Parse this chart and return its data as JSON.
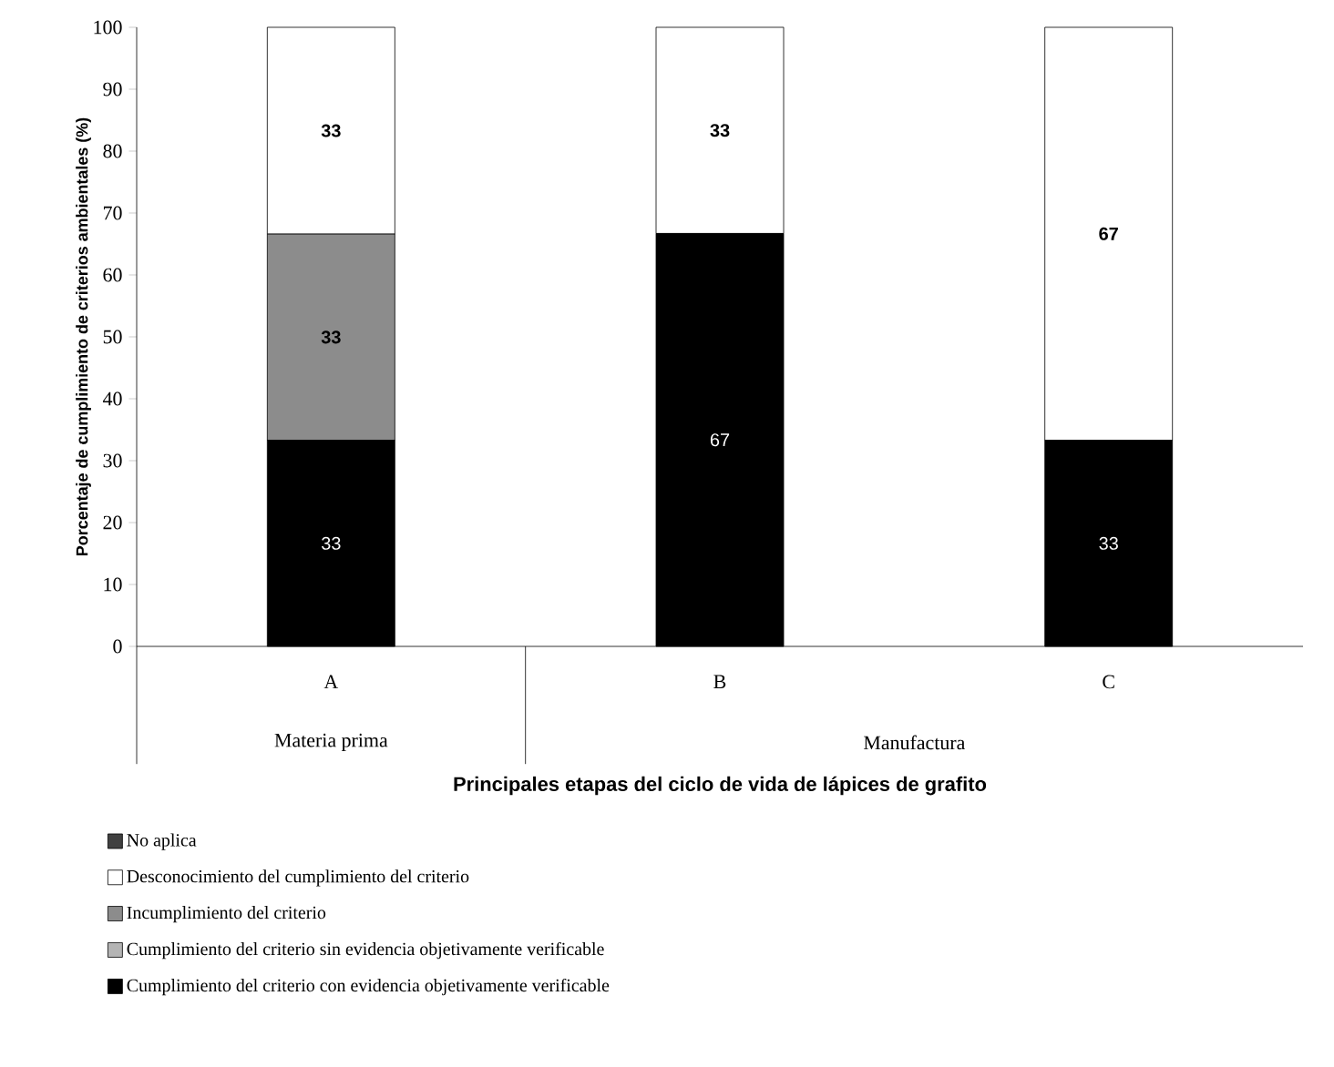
{
  "chart_data": {
    "type": "bar",
    "stacked": true,
    "xlabel": "Principales etapas del ciclo de vida de lápices de grafito",
    "ylabel": "Porcentaje de cumplimiento de criterios ambientales (%)",
    "categories": [
      "A",
      "B",
      "C"
    ],
    "annotations": [
      "Materia prima",
      "Manufactura"
    ],
    "ylim": [
      0,
      100
    ],
    "yticks": [
      0,
      10,
      20,
      30,
      40,
      50,
      60,
      70,
      80,
      90,
      100
    ],
    "grid": false,
    "legend": "bottom",
    "series": [
      {
        "name": "Cumplimiento del criterio con evidencia objetivamente verificable",
        "color": "#000000",
        "values": [
          33.3,
          66.7,
          33.3
        ],
        "value_labels": [
          "33",
          "67",
          "33"
        ]
      },
      {
        "name": "Cumplimiento del criterio sin evidencia objetivamente verificable",
        "color": "#b4b4b4",
        "values": [
          0,
          0,
          0
        ],
        "value_labels": [
          null,
          null,
          null
        ]
      },
      {
        "name": "Incumplimiento del criterio",
        "color": "#8c8c8c",
        "values": [
          33.3,
          0,
          0
        ],
        "value_labels": [
          "33",
          null,
          null
        ]
      },
      {
        "name": "Desconocimiento del cumplimiento del criterio",
        "color": "#ffffff",
        "values": [
          33.4,
          33.3,
          66.7
        ],
        "value_labels": [
          "33",
          "33",
          "67"
        ]
      },
      {
        "name": "No aplica",
        "color": "#404040",
        "values": [
          0,
          0,
          0
        ],
        "value_labels": [
          null,
          null,
          null
        ]
      }
    ]
  }
}
